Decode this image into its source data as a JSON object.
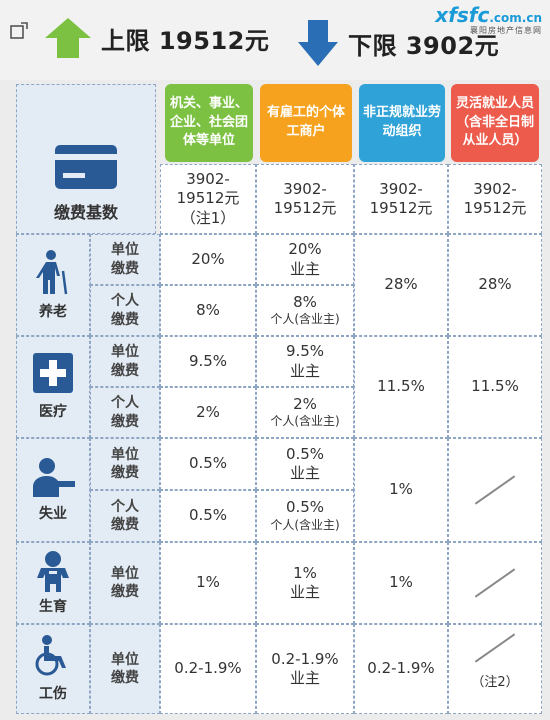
{
  "header": {
    "upper_limit": "上限 19512元",
    "lower_limit": "下限 3902元",
    "logo_main": "xfsfc",
    "logo_domain": ".com.cn",
    "logo_sub": "襄阳房地产信息网"
  },
  "columns": [
    {
      "label": "机关、事业、企业、社会团体等单位",
      "color": "#7cc142"
    },
    {
      "label": "有雇工的个体工商户",
      "color": "#f6a21e"
    },
    {
      "label": "非正规就业劳动组织",
      "color": "#2fa3d8"
    },
    {
      "label": "灵活就业人员（含非全日制从业人员）",
      "color": "#ec5b4b"
    }
  ],
  "base": {
    "label": "缴费基数",
    "values": [
      "3902-19512元（注1）",
      "3902-19512元",
      "3902-19512元",
      "3902-19512元"
    ]
  },
  "sub_labels": {
    "unit": "单位缴费",
    "personal": "个人缴费"
  },
  "categories": {
    "pension": "养老",
    "medical": "医疗",
    "unemployment": "失业",
    "maternity": "生育",
    "injury": "工伤"
  },
  "rows": {
    "pension_unit": [
      "20%",
      "20%",
      "业主"
    ],
    "pension_personal": [
      "8%",
      "8%",
      "个人(含业主)"
    ],
    "pension_merged": [
      "28%",
      "28%"
    ],
    "medical_unit": [
      "9.5%",
      "9.5%",
      "业主"
    ],
    "medical_personal": [
      "2%",
      "2%",
      "个人(含业主)"
    ],
    "medical_merged": [
      "11.5%",
      "11.5%"
    ],
    "unemp_unit": [
      "0.5%",
      "0.5%",
      "业主"
    ],
    "unemp_personal": [
      "0.5%",
      "0.5%",
      "个人(含业主)"
    ],
    "unemp_merged": "1%",
    "maternity_unit": [
      "1%",
      "1%",
      "业主",
      "1%"
    ],
    "injury_unit": [
      "0.2-1.9%",
      "0.2-1.9%",
      "业主",
      "0.2-1.9%",
      "（注2）"
    ]
  },
  "colors": {
    "up_arrow": "#7cc142",
    "down_arrow": "#2a6fb5",
    "icon": "#2a5a96",
    "left_bg": "#e3ebf4"
  }
}
